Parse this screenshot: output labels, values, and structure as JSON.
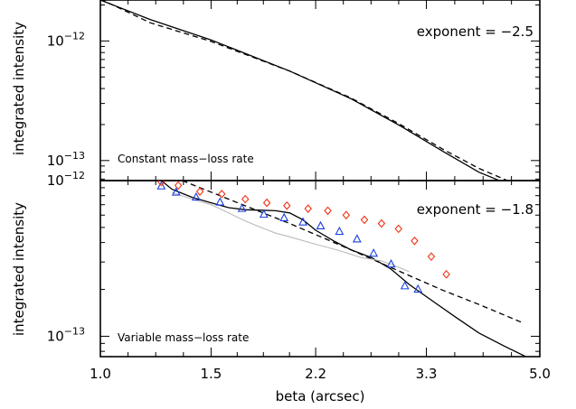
{
  "chart_data": [
    {
      "type": "line",
      "panel": "top",
      "ylabel": "integrated intensity",
      "xlabel": "",
      "xscale": "log",
      "yscale": "log",
      "xlim": [
        1.0,
        5.0
      ],
      "ylim": [
        6.8e-14,
        2.2e-12
      ],
      "yticks": [
        {
          "value": 1e-12,
          "label": "10",
          "exp": "−12"
        },
        {
          "value": 1e-13,
          "label": "10",
          "exp": "−13"
        }
      ],
      "annotation": "exponent  =  −2.5",
      "panel_label": "Constant mass−loss rate",
      "series": [
        {
          "style": "solid",
          "color": "#000000",
          "x": [
            1.0,
            1.2,
            1.5,
            2.0,
            2.5,
            3.0,
            3.5,
            4.0,
            4.5
          ],
          "y": [
            2.2e-12,
            1.51e-12,
            1.02e-12,
            5.6e-13,
            3.3e-13,
            1.95e-13,
            1.2e-13,
            8e-14,
            6.2e-14
          ]
        },
        {
          "style": "dashed",
          "color": "#000000",
          "x": [
            1.0,
            1.2,
            1.5,
            2.0,
            2.5,
            3.0,
            3.5,
            4.0,
            4.5
          ],
          "y": [
            2.24e-12,
            1.42e-12,
            9.9e-13,
            5.6e-13,
            3.35e-13,
            2e-13,
            1.25e-13,
            8.6e-14,
            6.6e-14
          ]
        }
      ]
    },
    {
      "type": "scatter",
      "panel": "bottom",
      "ylabel": "integrated intensity",
      "xlabel": "beta (arcsec)",
      "xscale": "log",
      "yscale": "log",
      "xlim": [
        1.0,
        5.0
      ],
      "ylim": [
        7.4e-14,
        1e-12
      ],
      "xticks": [
        {
          "value": 1.0,
          "label": "1.0"
        },
        {
          "value": 1.5,
          "label": "1.5"
        },
        {
          "value": 2.2,
          "label": "2.2"
        },
        {
          "value": 3.3,
          "label": "3.3"
        },
        {
          "value": 5.0,
          "label": "5.0"
        }
      ],
      "yticks": [
        {
          "value": 1e-12,
          "label": "10",
          "exp": "−12"
        },
        {
          "value": 1e-13,
          "label": "10",
          "exp": "−13"
        }
      ],
      "annotation": "exponent  =  −1.8",
      "panel_label": "Variable mass−loss rate",
      "series": [
        {
          "style": "solid",
          "color": "#000000",
          "x": [
            1.25,
            1.3,
            1.4,
            1.5,
            1.6,
            1.7,
            1.8,
            1.9,
            2.0,
            2.1,
            2.2,
            2.35,
            2.5,
            2.7,
            2.9,
            3.1,
            3.4,
            3.7,
            4.0,
            4.4,
            4.75
          ],
          "y": [
            1e-12,
            8.8e-13,
            7.8e-13,
            7.2e-13,
            6.7e-13,
            6.5e-13,
            6.45e-13,
            6.4e-13,
            6.2e-13,
            5.6e-13,
            4.8e-13,
            4.1e-13,
            3.6e-13,
            3.2e-13,
            2.7e-13,
            2.15e-13,
            1.65e-13,
            1.3e-13,
            1.05e-13,
            8.6e-14,
            7.4e-14
          ]
        },
        {
          "style": "dashed",
          "color": "#000000",
          "x": [
            1.35,
            1.6,
            2.0,
            2.5,
            3.0,
            3.5,
            4.0,
            4.7
          ],
          "y": [
            1e-12,
            7.6e-13,
            5.3e-13,
            3.6e-13,
            2.6e-13,
            1.98e-13,
            1.6e-13,
            1.22e-13
          ]
        },
        {
          "style": "solid",
          "color": "#bbbbbb",
          "x": [
            1.3,
            1.4,
            1.5,
            1.6,
            1.7,
            1.8,
            1.9,
            2.0,
            2.2,
            2.4,
            2.6,
            2.8,
            3.0,
            3.1
          ],
          "y": [
            8.4e-13,
            7.6e-13,
            7e-13,
            6.2e-13,
            5.5e-13,
            5e-13,
            4.6e-13,
            4.35e-13,
            3.9e-13,
            3.55e-13,
            3.2e-13,
            3.05e-13,
            2.75e-13,
            2.6e-13
          ]
        },
        {
          "marker": "triangle",
          "color": "#1a3fe0",
          "x": [
            1.25,
            1.32,
            1.42,
            1.55,
            1.68,
            1.82,
            1.96,
            2.1,
            2.24,
            2.4,
            2.56,
            2.72,
            2.9,
            3.05,
            3.2
          ],
          "y": [
            9.2e-13,
            8.4e-13,
            7.8e-13,
            7.25e-13,
            6.6e-13,
            6.05e-13,
            5.75e-13,
            5.4e-13,
            5.1e-13,
            4.7e-13,
            4.2e-13,
            3.4e-13,
            2.9e-13,
            2.1e-13,
            2e-13
          ]
        },
        {
          "marker": "diamond",
          "color": "#f03010",
          "x": [
            1.25,
            1.33,
            1.44,
            1.56,
            1.7,
            1.84,
            1.98,
            2.14,
            2.3,
            2.46,
            2.63,
            2.8,
            2.98,
            3.16,
            3.36,
            3.55
          ],
          "y": [
            9.8e-13,
            9.3e-13,
            8.5e-13,
            8.2e-13,
            7.6e-13,
            7.2e-13,
            6.9e-13,
            6.6e-13,
            6.4e-13,
            6e-13,
            5.6e-13,
            5.3e-13,
            4.9e-13,
            4.1e-13,
            3.25e-13,
            2.5e-13
          ]
        }
      ]
    }
  ]
}
